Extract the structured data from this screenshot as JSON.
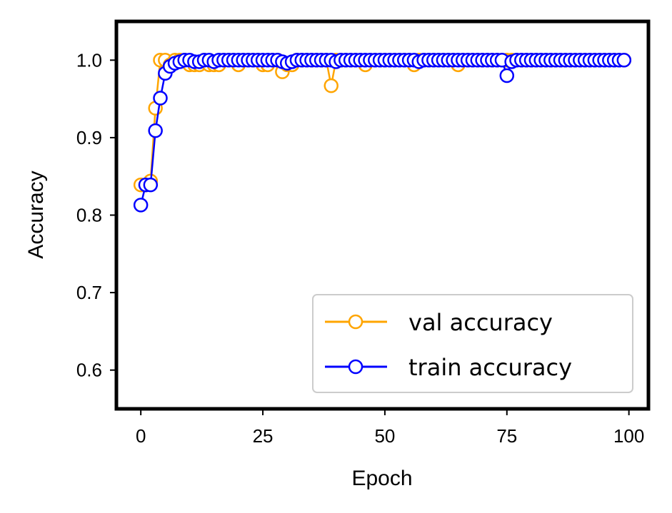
{
  "chart_data": {
    "type": "line",
    "title": "",
    "xlabel": "Epoch",
    "ylabel": "Accuracy",
    "xlim": [
      -5,
      104
    ],
    "ylim": [
      0.55,
      1.05
    ],
    "xticks": [
      0,
      25,
      50,
      75,
      100
    ],
    "yticks": [
      0.6,
      0.7,
      0.8,
      0.9,
      1.0
    ],
    "xtick_labels": [
      "0",
      "25",
      "50",
      "75",
      "100"
    ],
    "ytick_labels": [
      "0.6",
      "0.7",
      "0.8",
      "0.9",
      "1.0"
    ],
    "grid": false,
    "legend_position": "bottom-right",
    "marker": "hollow-circle",
    "series": [
      {
        "name": "val accuracy",
        "color": "#FFA500",
        "x": [
          0,
          1,
          2,
          3,
          4,
          5,
          6,
          7,
          8,
          9,
          10,
          11,
          12,
          13,
          14,
          15,
          16,
          17,
          18,
          19,
          20,
          21,
          22,
          23,
          24,
          25,
          26,
          27,
          28,
          29,
          30,
          31,
          32,
          33,
          34,
          35,
          36,
          37,
          38,
          39,
          40,
          41,
          42,
          43,
          44,
          45,
          46,
          47,
          48,
          49,
          50,
          51,
          52,
          53,
          54,
          55,
          56,
          57,
          58,
          59,
          60,
          61,
          62,
          63,
          64,
          65,
          66,
          67,
          68,
          69,
          70,
          71,
          72,
          73,
          74,
          75,
          76,
          77,
          78,
          79,
          80,
          81,
          82,
          83,
          84,
          85,
          86,
          87,
          88,
          89,
          90,
          91,
          92,
          93,
          94,
          95,
          96,
          97,
          98,
          99
        ],
        "y": [
          0.839,
          0.839,
          0.844,
          0.938,
          1.0,
          1.0,
          0.994,
          1.0,
          1.0,
          1.0,
          0.994,
          0.994,
          0.994,
          1.0,
          0.994,
          0.994,
          0.994,
          1.0,
          1.0,
          1.0,
          0.994,
          1.0,
          1.0,
          1.0,
          1.0,
          0.994,
          0.994,
          1.0,
          1.0,
          0.985,
          0.994,
          0.994,
          1.0,
          1.0,
          1.0,
          1.0,
          1.0,
          1.0,
          1.0,
          0.967,
          1.0,
          1.0,
          1.0,
          1.0,
          1.0,
          1.0,
          0.994,
          1.0,
          1.0,
          1.0,
          1.0,
          1.0,
          1.0,
          1.0,
          1.0,
          1.0,
          0.994,
          1.0,
          1.0,
          1.0,
          1.0,
          1.0,
          1.0,
          1.0,
          1.0,
          0.994,
          1.0,
          1.0,
          1.0,
          1.0,
          1.0,
          1.0,
          1.0,
          1.0,
          1.0,
          1.0,
          1.0,
          1.0,
          1.0,
          1.0,
          1.0,
          1.0,
          1.0,
          1.0,
          1.0,
          1.0,
          1.0,
          1.0,
          1.0,
          1.0,
          1.0,
          1.0,
          1.0,
          1.0,
          1.0,
          1.0,
          1.0,
          1.0,
          1.0,
          1.0
        ]
      },
      {
        "name": "train accuracy",
        "color": "#0000FF",
        "x": [
          0,
          1,
          2,
          3,
          4,
          5,
          6,
          7,
          8,
          9,
          10,
          11,
          12,
          13,
          14,
          15,
          16,
          17,
          18,
          19,
          20,
          21,
          22,
          23,
          24,
          25,
          26,
          27,
          28,
          29,
          30,
          31,
          32,
          33,
          34,
          35,
          36,
          37,
          38,
          39,
          40,
          41,
          42,
          43,
          44,
          45,
          46,
          47,
          48,
          49,
          50,
          51,
          52,
          53,
          54,
          55,
          56,
          57,
          58,
          59,
          60,
          61,
          62,
          63,
          64,
          65,
          66,
          67,
          68,
          69,
          70,
          71,
          72,
          73,
          74,
          75,
          76,
          77,
          78,
          79,
          80,
          81,
          82,
          83,
          84,
          85,
          86,
          87,
          88,
          89,
          90,
          91,
          92,
          93,
          94,
          95,
          96,
          97,
          98,
          99
        ],
        "y": [
          0.813,
          0.839,
          0.839,
          0.909,
          0.951,
          0.983,
          0.992,
          0.996,
          0.998,
          1.0,
          1.0,
          0.998,
          0.998,
          1.0,
          1.0,
          0.998,
          1.0,
          1.0,
          1.0,
          1.0,
          1.0,
          1.0,
          1.0,
          1.0,
          1.0,
          1.0,
          1.0,
          1.0,
          1.0,
          0.998,
          0.996,
          0.998,
          1.0,
          1.0,
          1.0,
          1.0,
          1.0,
          1.0,
          1.0,
          1.0,
          0.998,
          1.0,
          1.0,
          1.0,
          1.0,
          1.0,
          1.0,
          1.0,
          1.0,
          1.0,
          1.0,
          1.0,
          1.0,
          1.0,
          1.0,
          1.0,
          1.0,
          0.998,
          1.0,
          1.0,
          1.0,
          1.0,
          1.0,
          1.0,
          1.0,
          1.0,
          1.0,
          1.0,
          1.0,
          1.0,
          1.0,
          1.0,
          1.0,
          1.0,
          1.0,
          0.98,
          0.998,
          1.0,
          1.0,
          1.0,
          1.0,
          1.0,
          1.0,
          1.0,
          1.0,
          1.0,
          1.0,
          1.0,
          1.0,
          1.0,
          1.0,
          1.0,
          1.0,
          1.0,
          1.0,
          1.0,
          1.0,
          1.0,
          1.0,
          1.0
        ]
      }
    ]
  }
}
